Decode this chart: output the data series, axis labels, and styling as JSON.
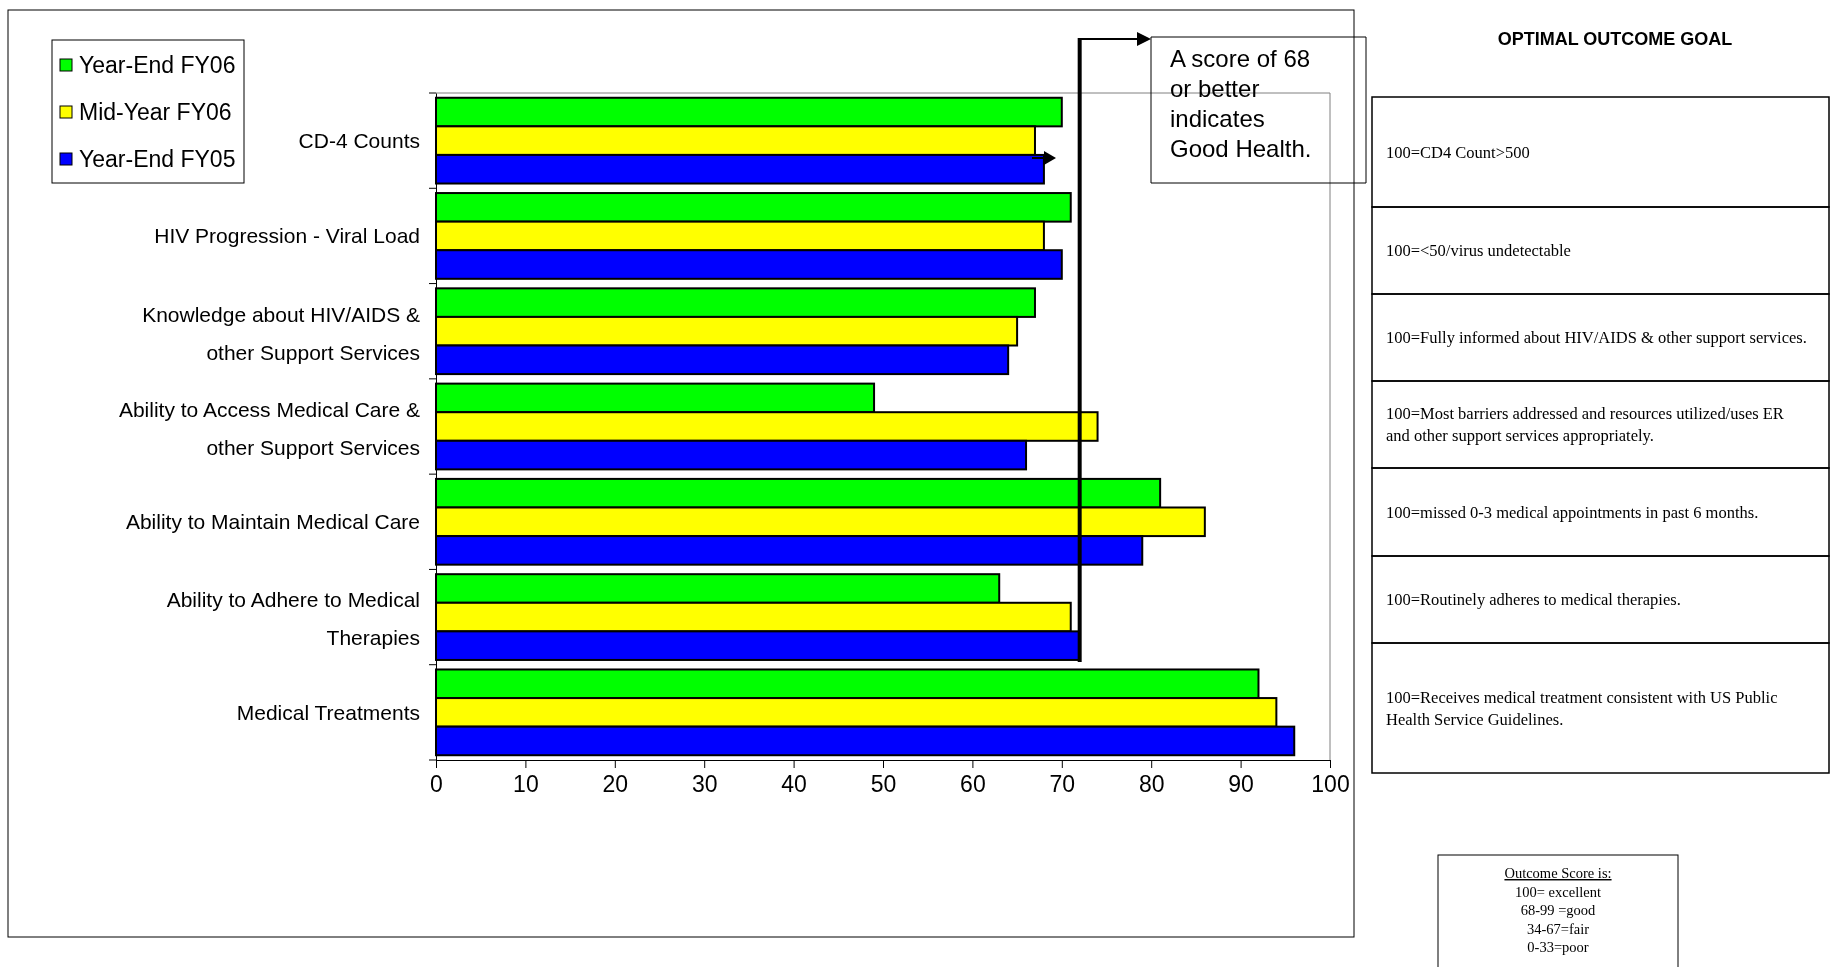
{
  "chart_data": {
    "type": "bar",
    "orientation": "horizontal",
    "categories": [
      "CD-4 Counts",
      "HIV Progression - Viral Load",
      "Knowledge about HIV/AIDS & other Support Services",
      "Ability to Access Medical Care & other Support Services",
      "Ability to Maintain Medical Care",
      "Ability to Adhere to Medical Therapies",
      "Medical Treatments"
    ],
    "series": [
      {
        "name": "Year-End FY06",
        "color": "#00ff00",
        "values": [
          70,
          71,
          67,
          49,
          81,
          63,
          92
        ]
      },
      {
        "name": "Mid-Year FY06",
        "color": "#ffff00",
        "values": [
          67,
          68,
          65,
          74,
          86,
          71,
          94
        ]
      },
      {
        "name": "Year-End FY05",
        "color": "#0000ff",
        "values": [
          68,
          70,
          64,
          66,
          79,
          72,
          96
        ]
      }
    ],
    "xlim": [
      0,
      100
    ],
    "xticks": [
      0,
      10,
      20,
      30,
      40,
      50,
      60,
      70,
      80,
      90,
      100
    ],
    "grid": false,
    "legend": "top left",
    "ref_lines": [
      {
        "axis": "x",
        "value": 72,
        "color": "#000000"
      }
    ],
    "annotations": [
      "A score of 68 or better indicates Good Health.",
      "OPTIMAL OUTCOME GOAL",
      "100=CD4 Count>500",
      "100=<50/virus undetectable",
      "100=Fully informed about HIV/AIDS & other support services.",
      "100=Most barriers addressed and resources utilized/uses ER and other support services appropriately.",
      "100=missed 0-3 medical appointments in past 6 months.",
      "100=Routinely adheres to medical therapies.",
      "100=Receives medical treatment consistent with US Public Health Service Guidelines.",
      "Outcome Score is:",
      "100= excellent",
      "68-99 =good",
      "34-67=fair",
      "0-33=poor"
    ]
  }
}
